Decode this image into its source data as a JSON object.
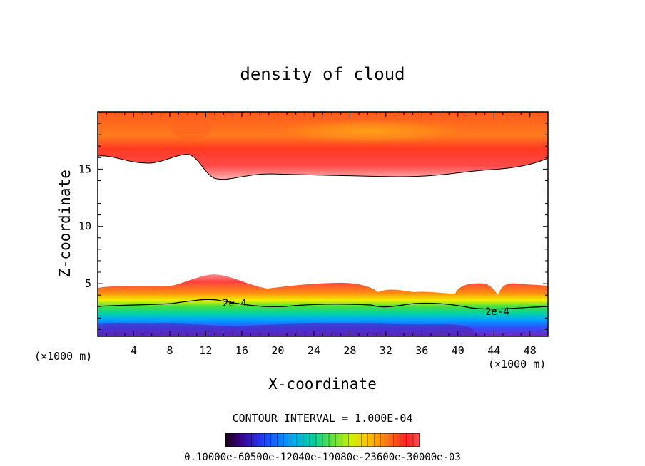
{
  "chart_data": {
    "type": "heatmap",
    "title": "density of cloud",
    "xlabel": "X-coordinate",
    "ylabel": "Z-coordinate",
    "x_unit_left": "(×1000 m)",
    "x_unit_right": "(×1000 m)",
    "xlim": [
      0,
      50
    ],
    "ylim": [
      0.4,
      20
    ],
    "x_ticks": [
      "4",
      "8",
      "12",
      "16",
      "20",
      "24",
      "28",
      "32",
      "36",
      "40",
      "44",
      "48"
    ],
    "y_ticks": [
      "5",
      "10",
      "15"
    ],
    "contour_labels": [
      "2e-4",
      "2e-4"
    ],
    "contour_interval": "CONTOUR INTERVAL = 1.000E-04",
    "colorbar_labels": "0.10000e-60500e-12040e-19080e-23600e-30000e-03",
    "regions": [
      {
        "name": "upper cloud layer",
        "z_top": 20,
        "z_bottom_min": 13.8,
        "z_bottom_max": 16
      },
      {
        "name": "lower cloud layer",
        "z_top_min": 3.8,
        "z_top_max": 5.5,
        "z_bottom": 0.4
      }
    ]
  }
}
